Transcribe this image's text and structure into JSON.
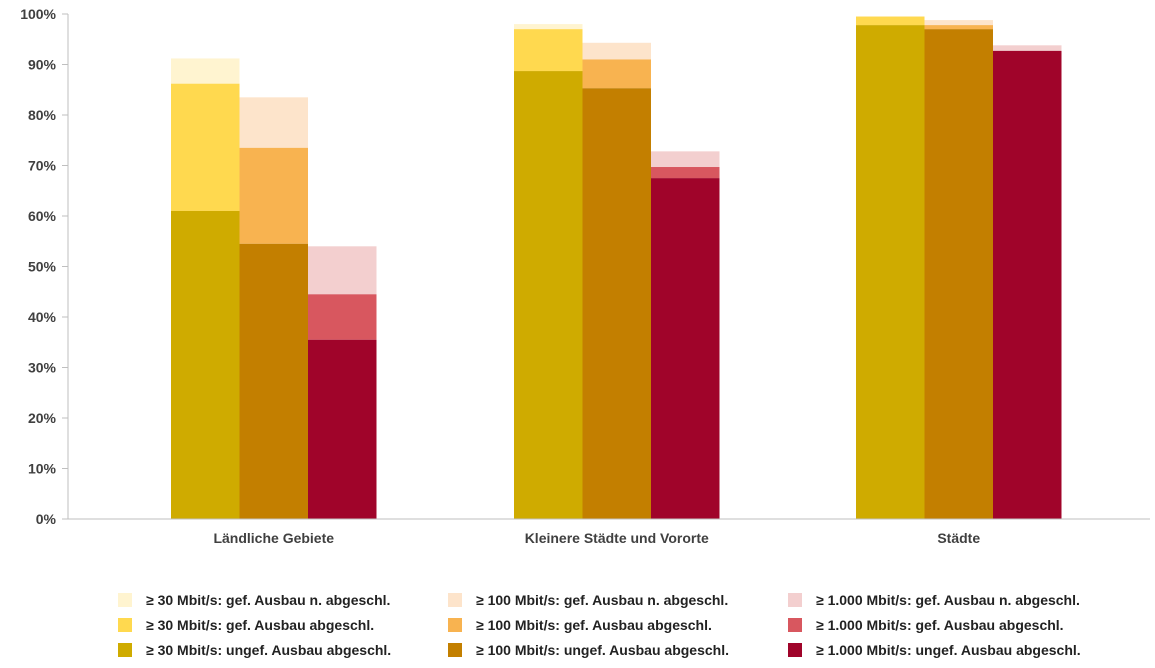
{
  "chart_data": {
    "type": "bar",
    "stacked": true,
    "ylim": [
      0,
      100
    ],
    "yticks": [
      "0%",
      "10%",
      "20%",
      "30%",
      "40%",
      "50%",
      "60%",
      "70%",
      "80%",
      "90%",
      "100%"
    ],
    "categories": [
      "Ländliche Gebiete",
      "Kleinere Städte und Vororte",
      "Städte"
    ],
    "groups": [
      {
        "speed": "≥ 30 Mbit/s",
        "bars": [
          {
            "ungef": 61.0,
            "gef_abgeschl": 86.2,
            "gef_n_abgeschl": 91.2
          },
          {
            "ungef": 88.7,
            "gef_abgeschl": 97.0,
            "gef_n_abgeschl": 98.0
          },
          {
            "ungef": 97.8,
            "gef_abgeschl": 99.5,
            "gef_n_abgeschl": 99.5
          }
        ],
        "colors": {
          "ungef": "#cfab00",
          "gef_abgeschl": "#ffd94f",
          "gef_n_abgeschl": "#fff4d0"
        }
      },
      {
        "speed": "≥ 100 Mbit/s",
        "bars": [
          {
            "ungef": 54.5,
            "gef_abgeschl": 73.5,
            "gef_n_abgeschl": 83.5
          },
          {
            "ungef": 85.3,
            "gef_abgeschl": 91.0,
            "gef_n_abgeschl": 94.3
          },
          {
            "ungef": 97.0,
            "gef_abgeschl": 97.8,
            "gef_n_abgeschl": 98.8
          }
        ],
        "colors": {
          "ungef": "#c37f00",
          "gef_abgeschl": "#f8b350",
          "gef_n_abgeschl": "#fde4cb"
        }
      },
      {
        "speed": "≥ 1.000 Mbit/s",
        "bars": [
          {
            "ungef": 35.5,
            "gef_abgeschl": 44.5,
            "gef_n_abgeschl": 54.0
          },
          {
            "ungef": 67.5,
            "gef_abgeschl": 69.7,
            "gef_n_abgeschl": 72.8
          },
          {
            "ungef": 92.7,
            "gef_abgeschl": 92.7,
            "gef_n_abgeschl": 93.8
          }
        ],
        "colors": {
          "ungef": "#a0042a",
          "gef_abgeschl": "#d8575f",
          "gef_n_abgeschl": "#f3cfcf"
        }
      }
    ],
    "legend": [
      [
        {
          "label": "≥ 30 Mbit/s: gef. Ausbau n. abgeschl.",
          "color": "#fff4d0"
        },
        {
          "label": "≥ 100 Mbit/s: gef. Ausbau n. abgeschl.",
          "color": "#fde4cb"
        },
        {
          "label": "≥ 1.000 Mbit/s: gef. Ausbau n. abgeschl.",
          "color": "#f3cfcf"
        }
      ],
      [
        {
          "label": "≥ 30 Mbit/s: gef. Ausbau abgeschl.",
          "color": "#ffd94f"
        },
        {
          "label": "≥ 100 Mbit/s: gef. Ausbau abgeschl.",
          "color": "#f8b350"
        },
        {
          "label": "≥ 1.000 Mbit/s: gef. Ausbau abgeschl.",
          "color": "#d8575f"
        }
      ],
      [
        {
          "label": "≥ 30 Mbit/s: ungef. Ausbau abgeschl.",
          "color": "#cfab00"
        },
        {
          "label": "≥ 100 Mbit/s: ungef. Ausbau abgeschl.",
          "color": "#c37f00"
        },
        {
          "label": "≥ 1.000 Mbit/s: ungef. Ausbau abgeschl.",
          "color": "#a0042a"
        }
      ]
    ],
    "legend_position": "bottom",
    "grid": false
  }
}
